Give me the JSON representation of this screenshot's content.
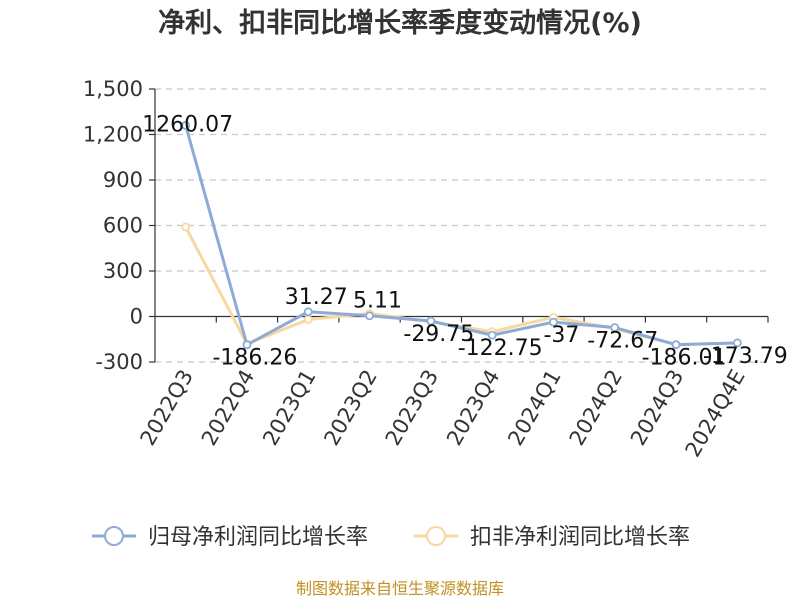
{
  "chart_data": {
    "type": "line",
    "title": "净利、扣非同比增长率季度变动情况(%)",
    "categories": [
      "2022Q3",
      "2022Q4",
      "2023Q1",
      "2023Q2",
      "2023Q3",
      "2023Q4",
      "2024Q1",
      "2024Q2",
      "2024Q3",
      "2024Q4E"
    ],
    "ylim": [
      -300,
      1500
    ],
    "yticks": [
      1500,
      1200,
      900,
      600,
      300,
      0,
      -300
    ],
    "ytick_labels": [
      "1,500",
      "1,200",
      "900",
      "600",
      "300",
      "0",
      "-300"
    ],
    "grid": true,
    "legend_position": "bottom",
    "series": [
      {
        "name": "归母净利润同比增长率",
        "color": "#8eaad6",
        "values": [
          1260.07,
          -186.26,
          31.27,
          5.11,
          -29.75,
          -122.75,
          -37,
          -72.67,
          -186.01,
          -173.79
        ],
        "labels": [
          "1260.07",
          "-186.26",
          "31.27",
          "5.11",
          "-29.75",
          "-122.75",
          "-37",
          "-72.67",
          "-186.01",
          "-173.79"
        ]
      },
      {
        "name": "扣非净利润同比增长率",
        "color": "#f7d8a0",
        "values": [
          590,
          -180,
          -20,
          20,
          -35,
          -100,
          -5,
          -80,
          -185,
          -175
        ]
      }
    ],
    "source": "制图数据来自恒生聚源数据库"
  }
}
